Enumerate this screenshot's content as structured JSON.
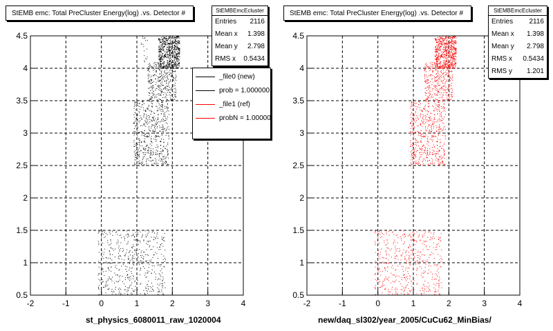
{
  "colors": {
    "ref": "#ff0000",
    "new": "#000000"
  },
  "panels": [
    {
      "title": "StEMB emc: Total PreCluster Energy(log) .vs. Detector #",
      "x_title": "st_physics_6080011_raw_1020004",
      "stats": {
        "name": "StEMBEmcEcluster",
        "rows": [
          {
            "label": "Entries",
            "value": "2116"
          },
          {
            "label": "Mean x",
            "value": "1.398"
          },
          {
            "label": "Mean y",
            "value": "2.798"
          },
          {
            "label": "RMS x",
            "value": "0.5434"
          }
        ]
      },
      "legend": [
        {
          "label": "_file0 (new)",
          "color": "#000000"
        },
        {
          "label": "prob = 1.000000",
          "color": "#000000"
        },
        {
          "label": "_file1 (ref)",
          "color": "#ff0000"
        },
        {
          "label": "probN = 1.000000",
          "color": "#ff0000"
        }
      ]
    },
    {
      "title": "StEMB emc: Total PreCluster Energy(log) .vs. Detector #",
      "x_title": "new/daq_sl302/year_2005/CuCu62_MinBias/",
      "stats": {
        "name": "StEMBEmcEcluster",
        "rows": [
          {
            "label": "Entries",
            "value": "2116"
          },
          {
            "label": "Mean x",
            "value": "1.398"
          },
          {
            "label": "Mean y",
            "value": "2.798"
          },
          {
            "label": "RMS x",
            "value": "0.5434"
          },
          {
            "label": "RMS y",
            "value": "1.201"
          }
        ]
      }
    }
  ],
  "chart_data": [
    {
      "type": "scatter",
      "series": [
        {
          "name": "_file0 (new)",
          "color": "#000000"
        }
      ],
      "xlim": [
        -2,
        4
      ],
      "ylim": [
        0.5,
        4.5
      ],
      "xticks": [
        "-2",
        "-1",
        "0",
        "1",
        "2",
        "3",
        "4"
      ],
      "yticks": [
        "0.5",
        "1",
        "1.5",
        "2",
        "2.5",
        "3",
        "3.5",
        "4",
        "4.5"
      ],
      "grid": true,
      "entries": 2116,
      "clusters": [
        {
          "x": [
            -0.1,
            1.8
          ],
          "y": [
            0.5,
            1.5
          ],
          "n": 520
        },
        {
          "x": [
            0.9,
            1.9
          ],
          "y": [
            2.5,
            3.5
          ],
          "n": 560
        },
        {
          "x": [
            1.3,
            2.1
          ],
          "y": [
            3.5,
            4.1
          ],
          "n": 360
        },
        {
          "x": [
            1.6,
            2.2
          ],
          "y": [
            4.0,
            4.5
          ],
          "n": 640
        },
        {
          "x": [
            1.1,
            1.3
          ],
          "y": [
            4.1,
            4.5
          ],
          "n": 18
        }
      ]
    },
    {
      "type": "scatter",
      "series": [
        {
          "name": "_file1 (ref)",
          "color": "#ff0000"
        }
      ],
      "xlim": [
        -2,
        4
      ],
      "ylim": [
        0.5,
        4.5
      ],
      "xticks": [
        "-2",
        "-1",
        "0",
        "1",
        "2",
        "3",
        "4"
      ],
      "yticks": [
        "0.5",
        "1",
        "1.5",
        "2",
        "2.5",
        "3",
        "3.5",
        "4",
        "4.5"
      ],
      "grid": true,
      "entries": 2116,
      "clusters": [
        {
          "x": [
            -0.1,
            1.8
          ],
          "y": [
            0.5,
            1.5
          ],
          "n": 520
        },
        {
          "x": [
            0.9,
            1.9
          ],
          "y": [
            2.5,
            3.5
          ],
          "n": 560
        },
        {
          "x": [
            1.3,
            2.1
          ],
          "y": [
            3.5,
            4.1
          ],
          "n": 360
        },
        {
          "x": [
            1.6,
            2.2
          ],
          "y": [
            4.0,
            4.5
          ],
          "n": 640
        }
      ]
    }
  ]
}
